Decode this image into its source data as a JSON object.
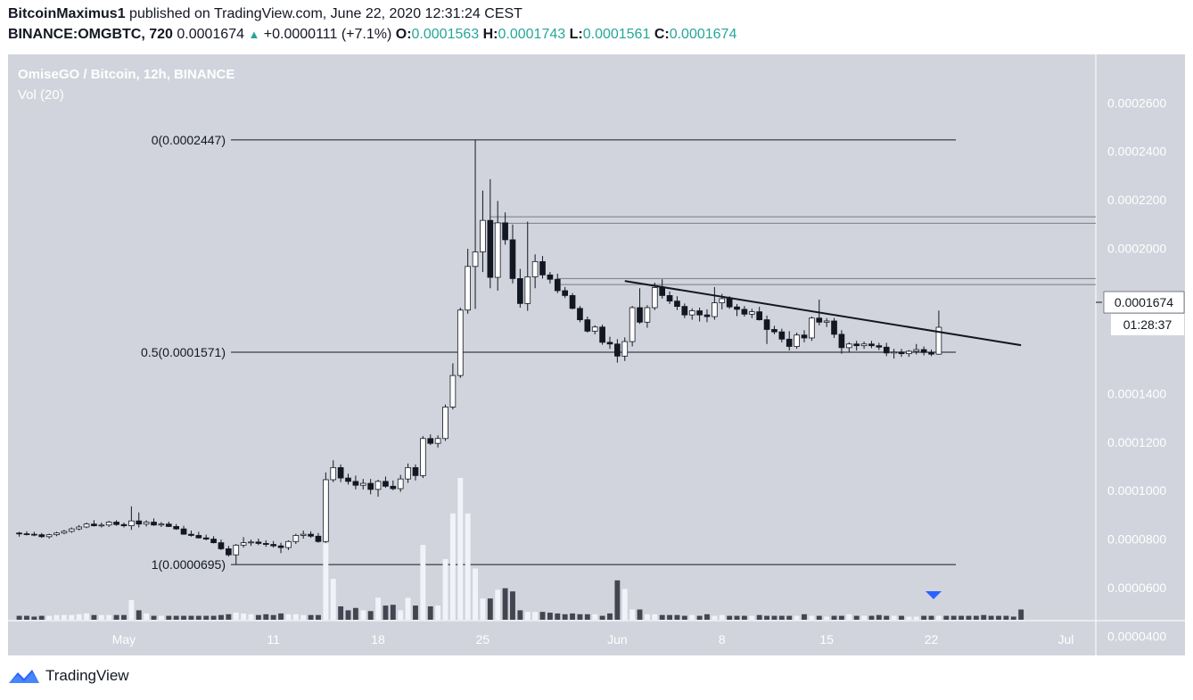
{
  "header": {
    "author": "BitcoinMaximus1",
    "published_text": "published on TradingView.com, June 22, 2020 12:31:24 CEST",
    "symbol": "BINANCE:OMGBTC, 720",
    "last_price": "0.0001674",
    "change": "+0.0000111 (+7.1%)",
    "open_label": "O:",
    "open": "0.0001563",
    "high_label": "H:",
    "high": "0.0001743",
    "low_label": "L:",
    "low": "0.0001561",
    "close_label": "C:",
    "close": "0.0001674"
  },
  "chart_title": "OmiseGO / Bitcoin, 12h, BINANCE",
  "volume_label": "Vol (20)",
  "price_label": "0.0001674",
  "countdown": "01:28:37",
  "footer": {
    "brand": "TradingView",
    "logo_icon": "tradingview-logo-icon"
  },
  "colors": {
    "background": "#d1d4dc",
    "up_candle": "#ffffff",
    "down_candle": "#131722",
    "volume_up": "#f0f3fa",
    "volume_down": "#434651",
    "marker": "#2962ff"
  },
  "chart_data": {
    "type": "candlestick",
    "title": "OmiseGO / Bitcoin, 12h, BINANCE",
    "y_axis": {
      "ticks": [
        "0.0002600",
        "0.0002400",
        "0.0002200",
        "0.0002000",
        "0.0001800",
        "0.0001400",
        "0.0001200",
        "0.0001000",
        "0.0000800",
        "0.0000600",
        "0.0000400"
      ],
      "tick_values": [
        0.00026,
        0.00024,
        0.00022,
        0.0002,
        0.00018,
        0.00014,
        0.00012,
        0.0001,
        8e-05,
        6e-05,
        4e-05
      ],
      "range": [
        3.2e-05,
        0.00028
      ]
    },
    "x_axis": {
      "ticks": [
        "May",
        "11",
        "18",
        "25",
        "Jun",
        "8",
        "15",
        "22",
        "Jul"
      ],
      "tick_index": [
        14,
        34,
        48,
        62,
        80,
        94,
        108,
        122,
        140
      ],
      "index_range": [
        -1.5,
        144
      ]
    },
    "fib_levels": [
      {
        "label": "0(0.0002447)",
        "value": 0.0002447
      },
      {
        "label": "0.5(0.0001571)",
        "value": 0.0001571
      },
      {
        "label": "1(0.0000695)",
        "value": 6.95e-05
      }
    ],
    "resistance_bands": [
      {
        "low": 0.0002103,
        "high": 0.000213,
        "from_index": 63,
        "to_index": 144
      },
      {
        "low": 0.000185,
        "high": 0.0001875,
        "from_index": 72,
        "to_index": 144
      }
    ],
    "trendline": {
      "from_index": 81,
      "from_value": 0.0001865,
      "to_index": 134,
      "to_value": 0.00016
    },
    "candles": [
      [
        8.25e-05,
        8.3e-05,
        8.1e-05,
        8.22e-05
      ],
      [
        8.22e-05,
        8.32e-05,
        8.15e-05,
        8.2e-05
      ],
      [
        8.2e-05,
        8.3e-05,
        8.12e-05,
        8.18e-05
      ],
      [
        8.18e-05,
        8.25e-05,
        8.05e-05,
        8.1e-05
      ],
      [
        8.1e-05,
        8.22e-05,
        8.02e-05,
        8.18e-05
      ],
      [
        8.18e-05,
        8.3e-05,
        8.12e-05,
        8.25e-05
      ],
      [
        8.25e-05,
        8.38e-05,
        8.2e-05,
        8.32e-05
      ],
      [
        8.32e-05,
        8.48e-05,
        8.26e-05,
        8.42e-05
      ],
      [
        8.42e-05,
        8.58e-05,
        8.36e-05,
        8.5e-05
      ],
      [
        8.5e-05,
        8.68e-05,
        8.45e-05,
        8.62e-05
      ],
      [
        8.62e-05,
        8.78e-05,
        8.52e-05,
        8.55e-05
      ],
      [
        8.55e-05,
        8.68e-05,
        8.48e-05,
        8.58e-05
      ],
      [
        8.58e-05,
        8.75e-05,
        8.5e-05,
        8.7e-05
      ],
      [
        8.7e-05,
        8.78e-05,
        8.55e-05,
        8.6e-05
      ],
      [
        8.6e-05,
        8.68e-05,
        8.48e-05,
        8.55e-05
      ],
      [
        8.55e-05,
        9.35e-05,
        8.38e-05,
        8.75e-05
      ],
      [
        8.75e-05,
        9.1e-05,
        8.48e-05,
        8.62e-05
      ],
      [
        8.62e-05,
        8.78e-05,
        8.52e-05,
        8.7e-05
      ],
      [
        8.7e-05,
        8.85e-05,
        8.55e-05,
        8.58e-05
      ],
      [
        8.58e-05,
        8.7e-05,
        8.5e-05,
        8.62e-05
      ],
      [
        8.62e-05,
        8.72e-05,
        8.5e-05,
        8.52e-05
      ],
      [
        8.52e-05,
        8.62e-05,
        8.38e-05,
        8.42e-05
      ],
      [
        8.42e-05,
        8.55e-05,
        8.18e-05,
        8.2e-05
      ],
      [
        8.2e-05,
        8.35e-05,
        8.1e-05,
        8.15e-05
      ],
      [
        8.15e-05,
        8.3e-05,
        8.02e-05,
        8.05e-05
      ],
      [
        8.05e-05,
        8.18e-05,
        7.95e-05,
        8e-05
      ],
      [
        8e-05,
        8.12e-05,
        7.82e-05,
        7.85e-05
      ],
      [
        7.85e-05,
        7.98e-05,
        7.55e-05,
        7.6e-05
      ],
      [
        7.6e-05,
        7.72e-05,
        7.28e-05,
        7.35e-05
      ],
      [
        7.35e-05,
        7.8e-05,
        6.95e-05,
        7.75e-05
      ],
      [
        7.75e-05,
        8.08e-05,
        7.65e-05,
        7.85e-05
      ],
      [
        7.85e-05,
        7.98e-05,
        7.72e-05,
        7.88e-05
      ],
      [
        7.88e-05,
        8.02e-05,
        7.75e-05,
        7.82e-05
      ],
      [
        7.82e-05,
        7.95e-05,
        7.68e-05,
        7.78e-05
      ],
      [
        7.78e-05,
        7.92e-05,
        7.65e-05,
        7.72e-05
      ],
      [
        7.72e-05,
        7.85e-05,
        7.42e-05,
        7.65e-05
      ],
      [
        7.65e-05,
        7.95e-05,
        7.55e-05,
        7.9e-05
      ],
      [
        7.9e-05,
        8.22e-05,
        7.8e-05,
        8.15e-05
      ],
      [
        8.15e-05,
        8.35e-05,
        8.02e-05,
        8.2e-05
      ],
      [
        8.2e-05,
        8.32e-05,
        8.05e-05,
        8.12e-05
      ],
      [
        8.12e-05,
        8.25e-05,
        7.85e-05,
        7.9e-05
      ],
      [
        7.9e-05,
        0.0001075,
        7.85e-05,
        0.0001045
      ],
      [
        0.0001045,
        0.0001125,
        0.0001035,
        0.0001095
      ],
      [
        0.0001095,
        0.0001108,
        0.0001035,
        0.0001052
      ],
      [
        0.0001052,
        0.000107,
        0.0001025,
        0.0001038
      ],
      [
        0.0001038,
        0.0001062,
        0.0001005,
        0.0001022
      ],
      [
        0.0001022,
        0.0001048,
        0.0001005,
        0.000103
      ],
      [
        0.000103,
        0.0001048,
        9.85e-05,
        0.0001005
      ],
      [
        0.0001005,
        0.0001045,
        9.75e-05,
        0.0001038
      ],
      [
        0.0001038,
        0.0001058,
        0.0001012,
        0.0001018
      ],
      [
        0.0001018,
        0.0001042,
        0.0001002,
        0.0001008
      ],
      [
        0.0001008,
        0.0001065,
        9.95e-05,
        0.0001048
      ],
      [
        0.0001048,
        0.0001112,
        0.0001032,
        0.0001095
      ],
      [
        0.0001095,
        0.0001108,
        0.0001042,
        0.0001062
      ],
      [
        0.0001062,
        0.0001225,
        0.0001052,
        0.0001215
      ],
      [
        0.0001215,
        0.0001232,
        0.0001188,
        0.0001195
      ],
      [
        0.0001195,
        0.0001228,
        0.0001178,
        0.0001215
      ],
      [
        0.0001215,
        0.0001355,
        0.0001205,
        0.0001345
      ],
      [
        0.0001345,
        0.0001525,
        0.0001335,
        0.0001475
      ],
      [
        0.0001475,
        0.0001755,
        0.0001465,
        0.0001745
      ],
      [
        0.0001745,
        0.0001998,
        0.000173,
        0.0001925
      ],
      [
        0.0001925,
        0.0002447,
        0.000175,
        0.0001985
      ],
      [
        0.0001985,
        0.0002238,
        0.0001902,
        0.0002115
      ],
      [
        0.0002115,
        0.0002285,
        0.0001835,
        0.000188
      ],
      [
        0.000188,
        0.0002195,
        0.0001825,
        0.0002105
      ],
      [
        0.0002105,
        0.0002148,
        0.0002015,
        0.0002035
      ],
      [
        0.0002035,
        0.0002098,
        0.0001855,
        0.0001875
      ],
      [
        0.0001875,
        0.0001915,
        0.0001755,
        0.0001772
      ],
      [
        0.0001772,
        0.000211,
        0.0001742,
        0.0001882
      ],
      [
        0.0001882,
        0.0001975,
        0.0001835,
        0.0001945
      ],
      [
        0.0001945,
        0.0001968,
        0.0001875,
        0.000189
      ],
      [
        0.000189,
        0.0001902,
        0.0001855,
        0.0001872
      ],
      [
        0.0001872,
        0.0001895,
        0.0001815,
        0.0001825
      ],
      [
        0.0001825,
        0.000184,
        0.0001795,
        0.0001805
      ],
      [
        0.0001805,
        0.0001815,
        0.0001748,
        0.0001752
      ],
      [
        0.0001752,
        0.0001762,
        0.0001695,
        0.0001705
      ],
      [
        0.0001705,
        0.0001718,
        0.0001652,
        0.0001658
      ],
      [
        0.0001658,
        0.0001682,
        0.0001645,
        0.0001675
      ],
      [
        0.0001675,
        0.0001685,
        0.0001602,
        0.0001612
      ],
      [
        0.0001612,
        0.0001635,
        0.0001585,
        0.0001605
      ],
      [
        0.0001605,
        0.0001625,
        0.0001528,
        0.0001555
      ],
      [
        0.0001555,
        0.0001632,
        0.0001535,
        0.0001615
      ],
      [
        0.0001615,
        0.0001762,
        0.0001595,
        0.0001755
      ],
      [
        0.0001755,
        0.0001835,
        0.0001688,
        0.0001695
      ],
      [
        0.0001695,
        0.0001765,
        0.0001672,
        0.0001755
      ],
      [
        0.0001755,
        0.0001858,
        0.0001745,
        0.0001838
      ],
      [
        0.0001838,
        0.0001872,
        0.0001792,
        0.0001805
      ],
      [
        0.0001805,
        0.0001822,
        0.000177,
        0.0001782
      ],
      [
        0.0001782,
        0.0001802,
        0.0001745,
        0.000176
      ],
      [
        0.000176,
        0.0001772,
        0.0001712,
        0.0001725
      ],
      [
        0.0001725,
        0.0001752,
        0.0001705,
        0.0001742
      ],
      [
        0.0001742,
        0.0001755,
        0.0001698,
        0.0001725
      ],
      [
        0.0001725,
        0.0001748,
        0.0001695,
        0.0001718
      ],
      [
        0.0001718,
        0.000184,
        0.0001705,
        0.0001775
      ],
      [
        0.0001775,
        0.0001812,
        0.0001748,
        0.0001792
      ],
      [
        0.0001792,
        0.0001802,
        0.000175,
        0.0001758
      ],
      [
        0.0001758,
        0.000177,
        0.000172,
        0.0001748
      ],
      [
        0.0001748,
        0.0001762,
        0.0001718,
        0.0001728
      ],
      [
        0.0001728,
        0.000175,
        0.0001712,
        0.0001738
      ],
      [
        0.0001738,
        0.0001758,
        0.0001702,
        0.0001705
      ],
      [
        0.0001705,
        0.0001722,
        0.0001605,
        0.0001665
      ],
      [
        0.0001665,
        0.000168,
        0.0001645,
        0.0001655
      ],
      [
        0.0001655,
        0.0001668,
        0.0001612,
        0.0001625
      ],
      [
        0.0001625,
        0.0001658,
        0.0001578,
        0.0001595
      ],
      [
        0.0001595,
        0.0001652,
        0.0001585,
        0.0001642
      ],
      [
        0.0001642,
        0.0001662,
        0.0001612,
        0.000163
      ],
      [
        0.000163,
        0.0001718,
        0.0001618,
        0.0001712
      ],
      [
        0.0001712,
        0.0001788,
        0.0001682,
        0.0001695
      ],
      [
        0.0001695,
        0.0001712,
        0.0001675,
        0.00017
      ],
      [
        0.00017,
        0.0001712,
        0.000163,
        0.0001645
      ],
      [
        0.0001645,
        0.0001662,
        0.0001565,
        0.000159
      ],
      [
        0.000159,
        0.0001612,
        0.0001572,
        0.0001605
      ],
      [
        0.0001605,
        0.0001618,
        0.0001578,
        0.0001598
      ],
      [
        0.0001598,
        0.0001615,
        0.0001585,
        0.0001605
      ],
      [
        0.0001605,
        0.0001618,
        0.0001588,
        0.0001598
      ],
      [
        0.0001598,
        0.000161,
        0.000158,
        0.0001592
      ],
      [
        0.0001592,
        0.000161,
        0.0001555,
        0.0001568
      ],
      [
        0.0001568,
        0.0001585,
        0.0001545,
        0.0001572
      ],
      [
        0.0001572,
        0.0001585,
        0.0001552,
        0.0001565
      ],
      [
        0.0001565,
        0.000158,
        0.0001552,
        0.0001575
      ],
      [
        0.0001575,
        0.0001605,
        0.0001562,
        0.0001582
      ],
      [
        0.0001582,
        0.0001595,
        0.0001558,
        0.000157
      ],
      [
        0.000157,
        0.0001582,
        0.0001555,
        0.0001563
      ],
      [
        0.0001563,
        0.0001743,
        0.0001561,
        0.0001674
      ]
    ],
    "volume": [
      0.05,
      0.05,
      0.04,
      0.05,
      0.05,
      0.06,
      0.06,
      0.06,
      0.07,
      0.08,
      0.06,
      0.06,
      0.06,
      0.06,
      0.06,
      0.25,
      0.12,
      0.08,
      0.05,
      0.05,
      0.05,
      0.05,
      0.05,
      0.05,
      0.05,
      0.05,
      0.05,
      0.06,
      0.07,
      0.09,
      0.08,
      0.07,
      0.06,
      0.07,
      0.06,
      0.08,
      0.07,
      0.07,
      0.06,
      0.06,
      0.06,
      0.97,
      0.52,
      0.17,
      0.12,
      0.15,
      0.12,
      0.11,
      0.28,
      0.18,
      0.19,
      0.12,
      0.28,
      0.18,
      0.95,
      0.17,
      0.18,
      0.77,
      1.35,
      1.8,
      1.35,
      0.65,
      0.27,
      0.27,
      0.38,
      0.4,
      0.36,
      0.12,
      0.1,
      0.1,
      0.1,
      0.09,
      0.08,
      0.07,
      0.08,
      0.07,
      0.07,
      0.07,
      0.05,
      0.08,
      0.5,
      0.39,
      0.13,
      0.13,
      0.07,
      0.07,
      0.06,
      0.06,
      0.06,
      0.05,
      0.06,
      0.05,
      0.07,
      0.05,
      0.06,
      0.05,
      0.05,
      0.05,
      0.05,
      0.06,
      0.05,
      0.05,
      0.05,
      0.05,
      0.05,
      0.07,
      0.05,
      0.05,
      0.04,
      0.05,
      0.05,
      0.07,
      0.05,
      0.05,
      0.05,
      0.06,
      0.05,
      0.05,
      0.05,
      0.04,
      0.04,
      0.05,
      0.05,
      0.05,
      0.05,
      0.05,
      0.05,
      0.05,
      0.05,
      0.06,
      0.05,
      0.05,
      0.05,
      0.04,
      0.13
    ],
    "volume_max": 1.8
  }
}
